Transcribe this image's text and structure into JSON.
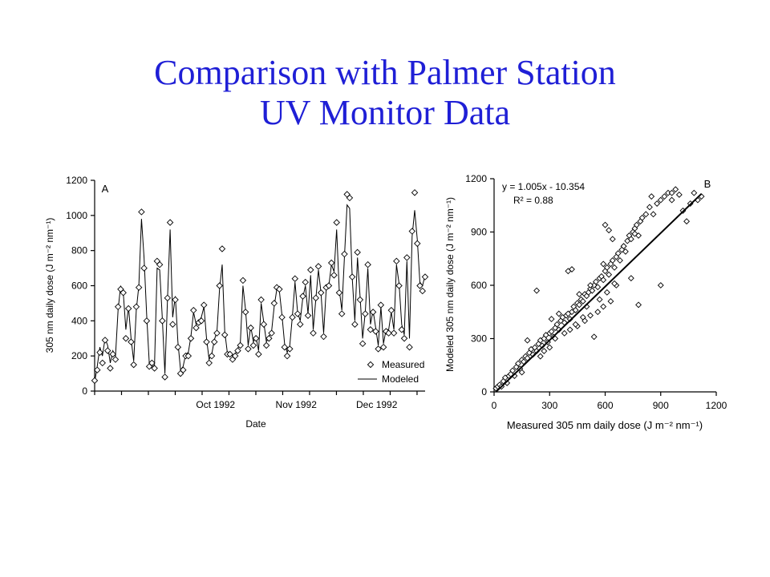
{
  "slide": {
    "title_line1": "Comparison with Palmer Station",
    "title_line2": "UV Monitor Data",
    "title_color": "#1f1fd6"
  },
  "chart_data": [
    {
      "type": "line",
      "panel_label": "A",
      "xlabel": "Date",
      "ylabel": "305 nm daily dose (J m⁻² nm⁻¹)",
      "ylim": [
        0,
        1200
      ],
      "yticks": [
        0,
        200,
        400,
        600,
        800,
        1000,
        1200
      ],
      "x_ticks": [
        {
          "label": "Oct 1992",
          "day": 30
        },
        {
          "label": "Nov 1992",
          "day": 60
        },
        {
          "label": "Dec 1992",
          "day": 90
        }
      ],
      "xlim": [
        0,
        123
      ],
      "legend": {
        "position": "bottom-right",
        "entries": [
          "Measured",
          "Modeled"
        ]
      },
      "series": [
        {
          "name": "Measured",
          "marker": "diamond",
          "y": [
            60,
            120,
            220,
            160,
            290,
            230,
            130,
            210,
            180,
            480,
            580,
            560,
            300,
            470,
            280,
            150,
            480,
            590,
            1020,
            700,
            400,
            140,
            160,
            130,
            740,
            720,
            400,
            80,
            530,
            960,
            380,
            520,
            250,
            100,
            120,
            200,
            200,
            300,
            460,
            360,
            390,
            400,
            490,
            280,
            160,
            200,
            280,
            330,
            600,
            810,
            320,
            210,
            210,
            180,
            200,
            230,
            260,
            630,
            450,
            240,
            360,
            260,
            300,
            210,
            520,
            380,
            260,
            300,
            330,
            500,
            590,
            580,
            420,
            250,
            200,
            240,
            420,
            640,
            440,
            380,
            540,
            620,
            430,
            690,
            330,
            530,
            710,
            560,
            310,
            590,
            600,
            730,
            660,
            960,
            560,
            440,
            780,
            1120,
            1100,
            650,
            380,
            790,
            520,
            270,
            440,
            720,
            350,
            450,
            340,
            240,
            490,
            250,
            340,
            330,
            460,
            330,
            740,
            600,
            350,
            300,
            760,
            250,
            910,
            1130,
            840,
            600,
            570,
            650
          ]
        },
        {
          "name": "Modeled",
          "marker": "line",
          "y": [
            50,
            140,
            250,
            200,
            300,
            260,
            160,
            230,
            200,
            460,
            600,
            560,
            350,
            480,
            300,
            170,
            460,
            600,
            980,
            760,
            430,
            160,
            150,
            140,
            700,
            690,
            420,
            100,
            520,
            920,
            420,
            540,
            280,
            120,
            140,
            210,
            220,
            310,
            450,
            380,
            400,
            420,
            480,
            300,
            180,
            210,
            290,
            340,
            580,
            720,
            340,
            220,
            220,
            200,
            210,
            240,
            280,
            600,
            460,
            260,
            370,
            280,
            310,
            230,
            500,
            390,
            280,
            310,
            340,
            480,
            580,
            570,
            430,
            270,
            220,
            260,
            430,
            620,
            450,
            400,
            530,
            600,
            440,
            660,
            350,
            520,
            690,
            560,
            330,
            580,
            600,
            720,
            680,
            920,
            580,
            460,
            760,
            1060,
            1040,
            640,
            400,
            760,
            540,
            300,
            450,
            700,
            380,
            460,
            360,
            260,
            480,
            270,
            350,
            350,
            450,
            350,
            720,
            610,
            380,
            320,
            740,
            300,
            880,
            1030,
            860,
            620,
            600,
            660
          ]
        }
      ]
    },
    {
      "type": "scatter",
      "panel_label": "B",
      "xlabel": "Measured 305 nm daily dose (J m⁻² nm⁻¹)",
      "ylabel": "Modeled 305 nm daily dose (J m⁻² nm⁻¹)",
      "xlim": [
        0,
        1200
      ],
      "ylim": [
        0,
        1200
      ],
      "xticks": [
        0,
        300,
        600,
        900,
        1200
      ],
      "yticks": [
        0,
        300,
        600,
        900,
        1200
      ],
      "annotation_line1": "y = 1.005x - 10.354",
      "annotation_line2": "R² = 0.88",
      "regression": {
        "slope": 1.005,
        "intercept": -10.354
      },
      "points_x": [
        10,
        20,
        30,
        40,
        50,
        60,
        70,
        80,
        90,
        100,
        110,
        120,
        130,
        140,
        150,
        160,
        170,
        180,
        190,
        200,
        210,
        220,
        230,
        240,
        250,
        260,
        270,
        280,
        290,
        300,
        310,
        320,
        330,
        340,
        350,
        360,
        370,
        380,
        390,
        400,
        410,
        420,
        430,
        440,
        450,
        460,
        470,
        480,
        490,
        500,
        510,
        520,
        530,
        540,
        550,
        560,
        570,
        580,
        590,
        600,
        610,
        620,
        630,
        640,
        650,
        660,
        670,
        680,
        690,
        700,
        710,
        720,
        730,
        740,
        750,
        760,
        770,
        780,
        790,
        800,
        820,
        840,
        860,
        880,
        900,
        920,
        940,
        960,
        980,
        1000,
        1020,
        1040,
        1060,
        1080,
        1100,
        1120,
        230,
        400,
        420,
        600,
        620,
        640,
        700,
        760,
        850,
        960,
        180,
        310,
        460,
        520,
        540,
        590,
        660,
        740,
        780,
        900,
        300,
        350,
        380,
        410,
        450,
        490,
        520,
        560,
        590,
        630,
        150,
        250,
        270,
        330,
        440,
        480,
        500,
        570,
        610,
        650
      ],
      "points_y": [
        20,
        30,
        40,
        30,
        60,
        80,
        50,
        90,
        100,
        120,
        90,
        140,
        160,
        130,
        180,
        170,
        200,
        190,
        220,
        240,
        210,
        250,
        230,
        270,
        290,
        260,
        300,
        320,
        280,
        330,
        340,
        310,
        360,
        380,
        350,
        400,
        420,
        390,
        430,
        440,
        410,
        450,
        480,
        460,
        500,
        490,
        520,
        510,
        550,
        540,
        560,
        580,
        570,
        600,
        620,
        590,
        640,
        650,
        630,
        680,
        700,
        660,
        720,
        740,
        700,
        760,
        780,
        740,
        800,
        820,
        790,
        850,
        880,
        860,
        900,
        920,
        940,
        880,
        960,
        980,
        1000,
        1040,
        1000,
        1060,
        1080,
        1100,
        1120,
        1080,
        1140,
        1110,
        1020,
        960,
        1060,
        1120,
        1080,
        1100,
        570,
        680,
        690,
        940,
        910,
        860,
        820,
        890,
        1100,
        1120,
        290,
        410,
        550,
        600,
        310,
        720,
        600,
        640,
        490,
        600,
        250,
        440,
        330,
        350,
        370,
        400,
        430,
        450,
        480,
        510,
        110,
        200,
        230,
        300,
        380,
        420,
        480,
        520,
        560,
        610
      ]
    }
  ]
}
